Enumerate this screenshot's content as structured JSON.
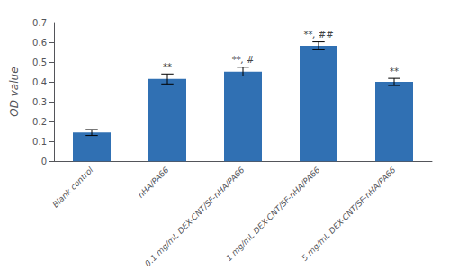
{
  "chart_data": {
    "type": "bar",
    "categories": [
      "Blank control",
      "nHA/PA66",
      "0.1 mg/mL DEX-CNT/SF-nHA/PA66",
      "1 mg/mL DEX-CNT/SF-nHA/PA66",
      "5 mg/mL DEX-CNT/SF-nHA/PA66"
    ],
    "values": [
      0.145,
      0.415,
      0.452,
      0.582,
      0.4
    ],
    "errors": [
      0.015,
      0.025,
      0.022,
      0.02,
      0.018
    ],
    "annotations": [
      null,
      "**",
      "**, #",
      "**, ##",
      "**"
    ],
    "color": "#3070b3",
    "ylabel": "OD value",
    "ylim": [
      0,
      0.7
    ],
    "yticks": [
      0,
      0.1,
      0.2,
      0.3,
      0.4,
      0.5,
      0.6,
      0.7
    ],
    "grid": false
  }
}
